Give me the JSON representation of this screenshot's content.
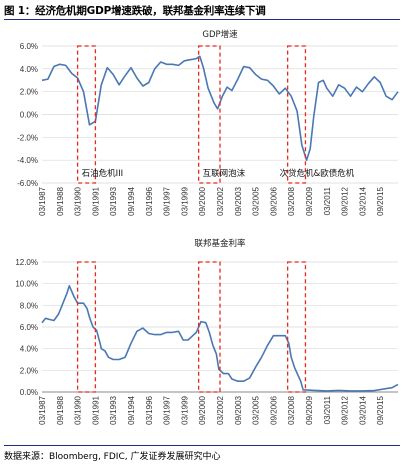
{
  "figure_title": "图 1：经济危机期GDP增速跌破，联邦基金利率连续下调",
  "source_note": "数据来源：Bloomberg, FDIC, 广发证券发展研究中心",
  "x_tick_labels": [
    "03/1987",
    "09/1988",
    "03/1990",
    "09/1991",
    "03/1993",
    "09/1994",
    "03/1996",
    "09/1997",
    "03/1999",
    "09/2000",
    "03/2002",
    "09/2003",
    "03/2005",
    "09/2006",
    "03/2008",
    "09/2009",
    "03/2011",
    "09/2012",
    "03/2014",
    "09/2015"
  ],
  "chart_data": [
    {
      "type": "line",
      "title": "GDP增速",
      "y_tick_labels": [
        "6.0%",
        "4.0%",
        "2.0%",
        "0.0%",
        "-2.0%",
        "-4.0%",
        "-6.0%"
      ],
      "ylim": [
        -6,
        6
      ],
      "series": [
        {
          "color": "#4a78b4",
          "points": [
            [
              1987.0,
              3.0
            ],
            [
              1987.5,
              3.1
            ],
            [
              1988.0,
              4.2
            ],
            [
              1988.5,
              4.4
            ],
            [
              1989.0,
              4.3
            ],
            [
              1989.5,
              3.6
            ],
            [
              1990.0,
              3.2
            ],
            [
              1990.5,
              2.0
            ],
            [
              1991.0,
              -0.9
            ],
            [
              1991.5,
              -0.6
            ],
            [
              1992.0,
              2.6
            ],
            [
              1992.5,
              4.1
            ],
            [
              1993.0,
              3.5
            ],
            [
              1993.5,
              2.6
            ],
            [
              1994.0,
              3.4
            ],
            [
              1994.5,
              4.1
            ],
            [
              1995.0,
              3.2
            ],
            [
              1995.5,
              2.5
            ],
            [
              1996.0,
              2.8
            ],
            [
              1996.5,
              4.0
            ],
            [
              1997.0,
              4.6
            ],
            [
              1997.5,
              4.4
            ],
            [
              1998.0,
              4.4
            ],
            [
              1998.5,
              4.3
            ],
            [
              1999.0,
              4.7
            ],
            [
              1999.5,
              4.8
            ],
            [
              2000.0,
              4.9
            ],
            [
              2000.3,
              5.1
            ],
            [
              2000.6,
              4.1
            ],
            [
              2001.0,
              2.3
            ],
            [
              2001.5,
              1.0
            ],
            [
              2001.8,
              0.5
            ],
            [
              2002.2,
              1.6
            ],
            [
              2002.6,
              2.4
            ],
            [
              2003.0,
              2.1
            ],
            [
              2003.5,
              3.1
            ],
            [
              2004.0,
              4.2
            ],
            [
              2004.5,
              4.1
            ],
            [
              2005.0,
              3.5
            ],
            [
              2005.5,
              3.1
            ],
            [
              2006.0,
              3.0
            ],
            [
              2006.5,
              2.5
            ],
            [
              2007.0,
              1.8
            ],
            [
              2007.5,
              2.3
            ],
            [
              2008.0,
              1.6
            ],
            [
              2008.5,
              0.3
            ],
            [
              2008.9,
              -2.7
            ],
            [
              2009.3,
              -4.0
            ],
            [
              2009.6,
              -3.0
            ],
            [
              2009.9,
              -0.2
            ],
            [
              2010.3,
              2.8
            ],
            [
              2010.7,
              3.0
            ],
            [
              2011.0,
              2.3
            ],
            [
              2011.5,
              1.6
            ],
            [
              2012.0,
              2.6
            ],
            [
              2012.5,
              2.3
            ],
            [
              2013.0,
              1.6
            ],
            [
              2013.5,
              2.4
            ],
            [
              2014.0,
              2.0
            ],
            [
              2014.5,
              2.7
            ],
            [
              2015.0,
              3.3
            ],
            [
              2015.5,
              2.8
            ],
            [
              2016.0,
              1.6
            ],
            [
              2016.5,
              1.3
            ],
            [
              2017.0,
              2.0
            ]
          ]
        }
      ],
      "bands": [
        {
          "label": "石油危机III",
          "from": 1990.0,
          "to": 1991.5
        },
        {
          "label": "互联网泡沫",
          "from": 2000.2,
          "to": 2002.0
        },
        {
          "label": "次贷危机&欧债危机",
          "from": 2007.7,
          "to": 2009.2
        }
      ]
    },
    {
      "type": "line",
      "title": "联邦基金利率",
      "y_tick_labels": [
        "12.0%",
        "10.0%",
        "8.0%",
        "6.0%",
        "4.0%",
        "2.0%",
        "0.0%"
      ],
      "ylim": [
        0,
        12
      ],
      "series": [
        {
          "color": "#4a78b4",
          "points": [
            [
              1987.0,
              6.4
            ],
            [
              1987.3,
              6.8
            ],
            [
              1987.6,
              6.7
            ],
            [
              1988.0,
              6.6
            ],
            [
              1988.4,
              7.2
            ],
            [
              1988.8,
              8.3
            ],
            [
              1989.1,
              9.1
            ],
            [
              1989.3,
              9.8
            ],
            [
              1989.5,
              9.3
            ],
            [
              1989.7,
              8.8
            ],
            [
              1990.0,
              8.2
            ],
            [
              1990.5,
              8.2
            ],
            [
              1990.8,
              7.7
            ],
            [
              1991.0,
              6.9
            ],
            [
              1991.3,
              6.0
            ],
            [
              1991.6,
              5.7
            ],
            [
              1991.9,
              4.5
            ],
            [
              1992.0,
              4.0
            ],
            [
              1992.3,
              3.8
            ],
            [
              1992.6,
              3.2
            ],
            [
              1993.0,
              3.0
            ],
            [
              1993.5,
              3.0
            ],
            [
              1994.0,
              3.2
            ],
            [
              1994.5,
              4.5
            ],
            [
              1995.0,
              5.6
            ],
            [
              1995.5,
              5.9
            ],
            [
              1996.0,
              5.4
            ],
            [
              1996.5,
              5.3
            ],
            [
              1997.0,
              5.3
            ],
            [
              1997.5,
              5.5
            ],
            [
              1998.0,
              5.5
            ],
            [
              1998.5,
              5.6
            ],
            [
              1998.9,
              4.8
            ],
            [
              1999.3,
              4.8
            ],
            [
              1999.6,
              5.1
            ],
            [
              2000.0,
              5.5
            ],
            [
              2000.4,
              6.5
            ],
            [
              2000.8,
              6.4
            ],
            [
              2001.1,
              5.5
            ],
            [
              2001.4,
              4.3
            ],
            [
              2001.7,
              3.5
            ],
            [
              2001.9,
              2.1
            ],
            [
              2002.3,
              1.7
            ],
            [
              2002.7,
              1.7
            ],
            [
              2003.0,
              1.2
            ],
            [
              2003.5,
              1.0
            ],
            [
              2004.0,
              1.0
            ],
            [
              2004.5,
              1.3
            ],
            [
              2005.0,
              2.3
            ],
            [
              2005.5,
              3.2
            ],
            [
              2006.0,
              4.3
            ],
            [
              2006.5,
              5.2
            ],
            [
              2007.0,
              5.2
            ],
            [
              2007.5,
              5.2
            ],
            [
              2007.8,
              4.5
            ],
            [
              2008.0,
              3.2
            ],
            [
              2008.3,
              2.2
            ],
            [
              2008.8,
              1.0
            ],
            [
              2009.0,
              0.2
            ],
            [
              2010.0,
              0.15
            ],
            [
              2011.0,
              0.1
            ],
            [
              2012.0,
              0.15
            ],
            [
              2013.0,
              0.1
            ],
            [
              2014.0,
              0.1
            ],
            [
              2015.0,
              0.13
            ],
            [
              2015.9,
              0.3
            ],
            [
              2016.5,
              0.4
            ],
            [
              2017.0,
              0.7
            ]
          ]
        }
      ],
      "bands": [
        {
          "from": 1990.0,
          "to": 1991.5
        },
        {
          "from": 2000.2,
          "to": 2002.0
        },
        {
          "from": 2007.7,
          "to": 2009.2
        }
      ]
    }
  ]
}
